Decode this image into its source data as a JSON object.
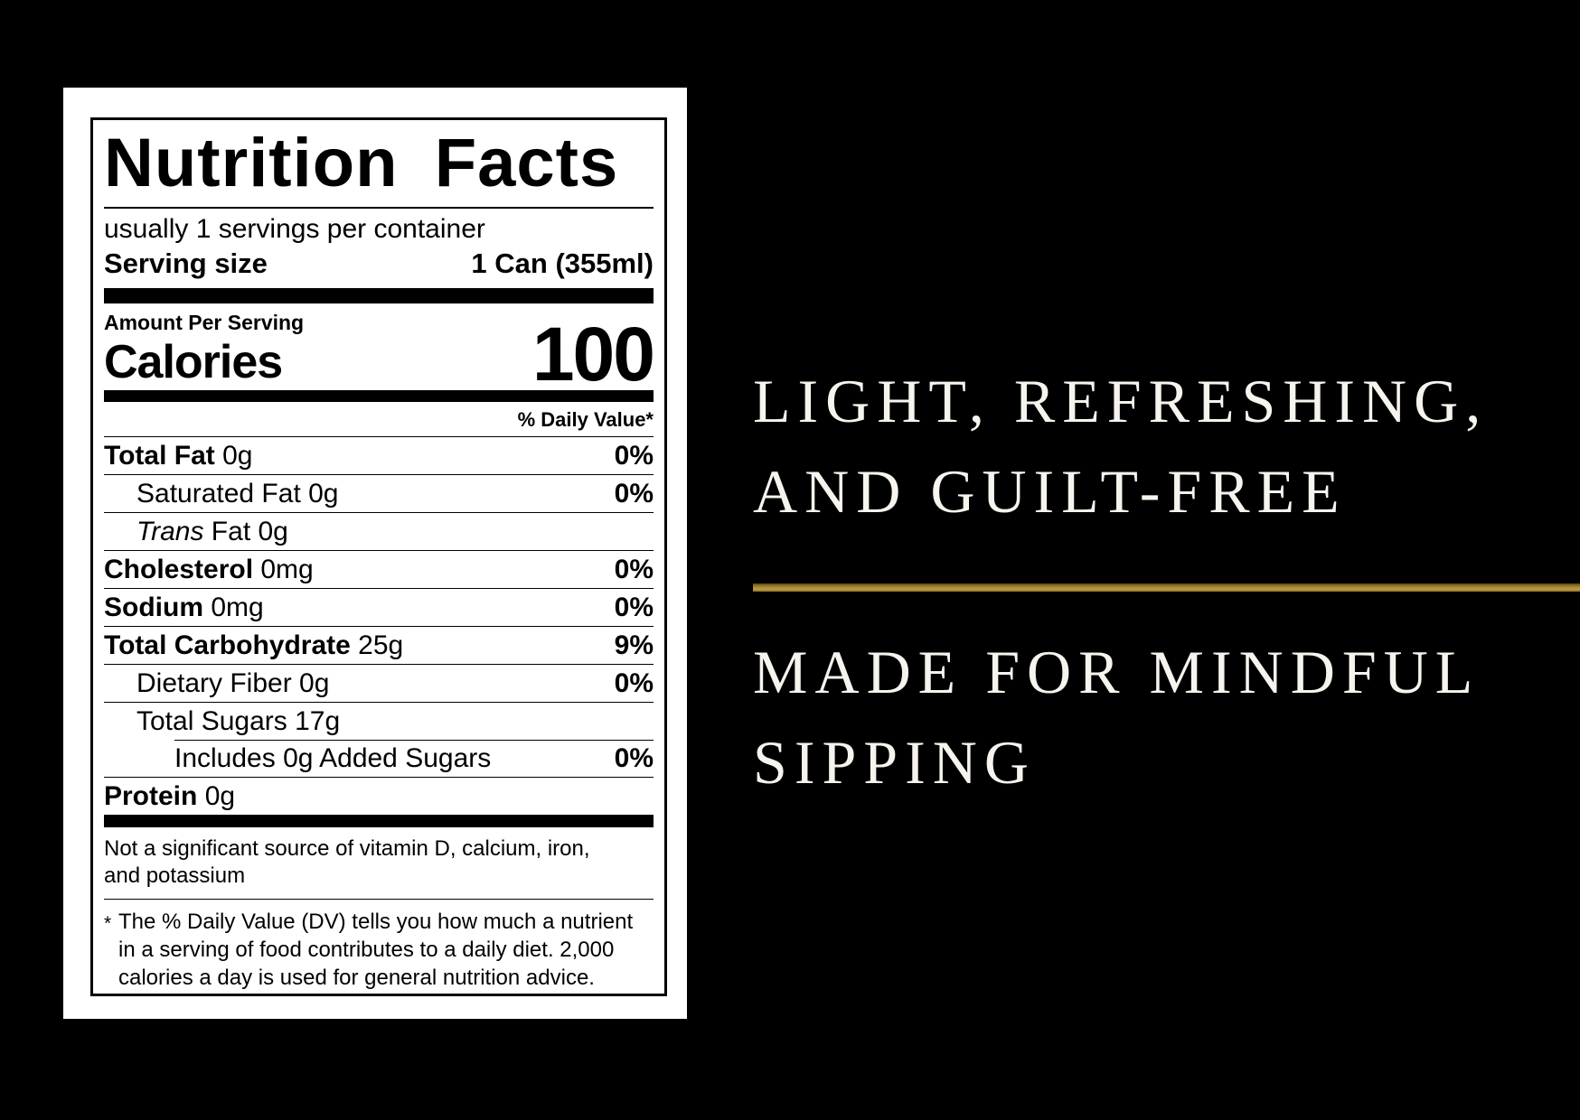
{
  "colors": {
    "page_background": "#000000",
    "panel_background": "#ffffff",
    "label_ink": "#000000",
    "tagline_text": "#f7f4ee",
    "gold_divider": "#9c7f2c"
  },
  "label": {
    "title": "Nutrition Facts",
    "servings_line": "usually 1 servings per container",
    "serving_size_label": "Serving size",
    "serving_size_value": "1 Can (355ml)",
    "amount_per_serving": "Amount Per Serving",
    "calories_label": "Calories",
    "calories_value": "100",
    "daily_value_header": "% Daily Value*",
    "rows": [
      {
        "bold": "Total Fat",
        "rest": " 0g",
        "pct": "0%",
        "indent": 0
      },
      {
        "rest": "Saturated Fat 0g",
        "pct": "0%",
        "indent": 1
      },
      {
        "italic": "Trans",
        "rest": " Fat 0g",
        "pct": "",
        "indent": 1
      },
      {
        "bold": "Cholesterol",
        "rest": " 0mg",
        "pct": "0%",
        "indent": 0
      },
      {
        "bold": "Sodium",
        "rest": " 0mg",
        "pct": "0%",
        "indent": 0
      },
      {
        "bold": "Total Carbohydrate",
        "rest": " 25g",
        "pct": "9%",
        "indent": 0
      },
      {
        "rest": "Dietary Fiber 0g",
        "pct": "0%",
        "indent": 1
      },
      {
        "rest": "Total Sugars 17g",
        "pct": "",
        "indent": 1
      },
      {
        "rest": "Includes 0g Added Sugars",
        "pct": "0%",
        "indent": 2
      },
      {
        "bold": "Protein",
        "rest": " 0g",
        "pct": "",
        "indent": 0
      }
    ],
    "insignificant_note": "Not a significant source of vitamin D, calcium, iron, and potassium",
    "footnote_marker": "*",
    "footnote_text": "The % Daily Value (DV) tells you how much a nutrient in a serving of food contributes to a daily diet. 2,000 calories a day is used for general nutrition advice."
  },
  "tagline": {
    "top_line1": "LIGHT, REFRESHING,",
    "top_line2": "AND GUILT-FREE",
    "bottom_line1": "MADE FOR MINDFUL",
    "bottom_line2": "SIPPING"
  }
}
